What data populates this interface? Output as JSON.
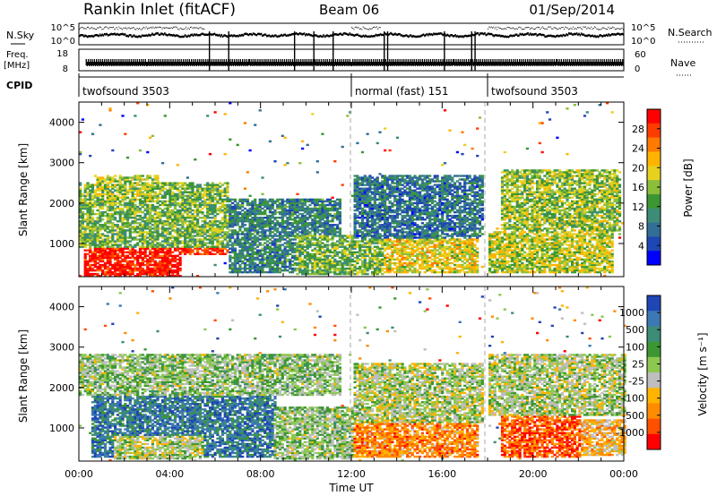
{
  "header": {
    "station": "Rankin Inlet (fitACF)",
    "beam": "Beam 06",
    "date": "01/Sep/2014"
  },
  "strip": {
    "nsky_label": "N.Sky",
    "nsky_ticks": [
      "10^5",
      "10^0"
    ],
    "nsearch_ticks": [
      "10^5",
      "10^0"
    ],
    "nsearch_label": "N.Search",
    "freq_label_1": "Freq.",
    "freq_label_2": "[MHz]",
    "freq_ticks": [
      "18",
      "8"
    ],
    "nave_ticks": [
      "60",
      "0"
    ],
    "nave_label": "Nave",
    "cpid_label": "CPID",
    "cpid_segments": [
      {
        "label": "twofsound 3503",
        "start": 0,
        "end": 12
      },
      {
        "label": "normal (fast) 151",
        "start": 12,
        "end": 18
      },
      {
        "label": "twofsound 3503",
        "start": 18,
        "end": 24
      }
    ]
  },
  "chart_data": [
    {
      "type": "heatmap",
      "title": "",
      "xlabel": "",
      "ylabel": "Slant Range [km]",
      "xlim": [
        0,
        24
      ],
      "ylim": [
        180,
        4500
      ],
      "yticks": [
        "4000",
        "3000",
        "2000",
        "1000"
      ],
      "colorbar": {
        "label": "Power [dB]",
        "ticks": [
          "28",
          "24",
          "20",
          "16",
          "12",
          "8",
          "4"
        ],
        "colors": [
          "#ff0000",
          "#ff3c00",
          "#ff7a00",
          "#ffb400",
          "#e6d21e",
          "#8cbe3c",
          "#3c9632",
          "#3c8c78",
          "#326e96",
          "#1e46b4",
          "#0000ff"
        ]
      },
      "regions": [
        {
          "t0": 0.2,
          "t1": 4.5,
          "r0": 180,
          "r1": 1000,
          "level": 0.95
        },
        {
          "t0": 3.6,
          "t1": 7.2,
          "r0": 700,
          "r1": 1700,
          "level": 0.92
        },
        {
          "t0": 7.2,
          "t1": 9.3,
          "r0": 300,
          "r1": 750,
          "level": 0.88
        },
        {
          "t0": 0,
          "t1": 6.5,
          "r0": 900,
          "r1": 2500,
          "level": 0.45
        },
        {
          "t0": 6.5,
          "t1": 11.5,
          "r0": 250,
          "r1": 2100,
          "level": 0.3
        },
        {
          "t0": 9.5,
          "t1": 13.5,
          "r0": 200,
          "r1": 1200,
          "level": 0.45
        },
        {
          "t0": 13.4,
          "t1": 17.5,
          "r0": 250,
          "r1": 1100,
          "level": 0.6
        },
        {
          "t0": 12,
          "t1": 17.8,
          "r0": 1100,
          "r1": 2700,
          "level": 0.25
        },
        {
          "t0": 18,
          "t1": 23.5,
          "r0": 250,
          "r1": 1300,
          "level": 0.55
        },
        {
          "t0": 18.5,
          "t1": 23.8,
          "r0": 1300,
          "r1": 2800,
          "level": 0.5
        },
        {
          "t0": 0.6,
          "t1": 3.5,
          "r0": 2000,
          "r1": 2700,
          "level": 0.5
        }
      ]
    },
    {
      "type": "heatmap",
      "title": "",
      "xlabel": "Time UT",
      "ylabel": "Slant Range [km]",
      "xlim": [
        0,
        24
      ],
      "ylim": [
        180,
        4500
      ],
      "xticks": [
        "00:00",
        "04:00",
        "08:00",
        "12:00",
        "16:00",
        "20:00",
        "00:00"
      ],
      "yticks": [
        "4000",
        "3000",
        "2000",
        "1000"
      ],
      "colorbar": {
        "label": "Velocity [m s⁻¹]",
        "ticks": [
          "1000",
          "500",
          "100",
          "25",
          "-25",
          "-100",
          "-500",
          "-1000"
        ],
        "colors": [
          "#1e46b4",
          "#3c78b4",
          "#3c8c78",
          "#3c9632",
          "#8cc850",
          "#bebebe",
          "#ffb400",
          "#ff8c00",
          "#ff5000",
          "#ff0000"
        ]
      },
      "regions": [
        {
          "t0": 0.5,
          "t1": 8.6,
          "r0": 250,
          "r1": 1800,
          "level": 0.82
        },
        {
          "t0": 1.5,
          "t1": 5.5,
          "r0": 200,
          "r1": 800,
          "level": 0.5
        },
        {
          "t0": 0,
          "t1": 11.5,
          "r0": 1800,
          "r1": 2800,
          "level": 0.55
        },
        {
          "t0": 8.5,
          "t1": 12,
          "r0": 200,
          "r1": 1500,
          "level": 0.55
        },
        {
          "t0": 12,
          "t1": 17.5,
          "r0": 250,
          "r1": 1100,
          "level": 0.25
        },
        {
          "t0": 12,
          "t1": 17.8,
          "r0": 1100,
          "r1": 2600,
          "level": 0.5
        },
        {
          "t0": 18.5,
          "t1": 22,
          "r0": 250,
          "r1": 1300,
          "level": 0.15
        },
        {
          "t0": 18,
          "t1": 24,
          "r0": 1300,
          "r1": 2800,
          "level": 0.5
        },
        {
          "t0": 22,
          "t1": 24,
          "r0": 300,
          "r1": 1200,
          "level": 0.35
        }
      ]
    }
  ]
}
